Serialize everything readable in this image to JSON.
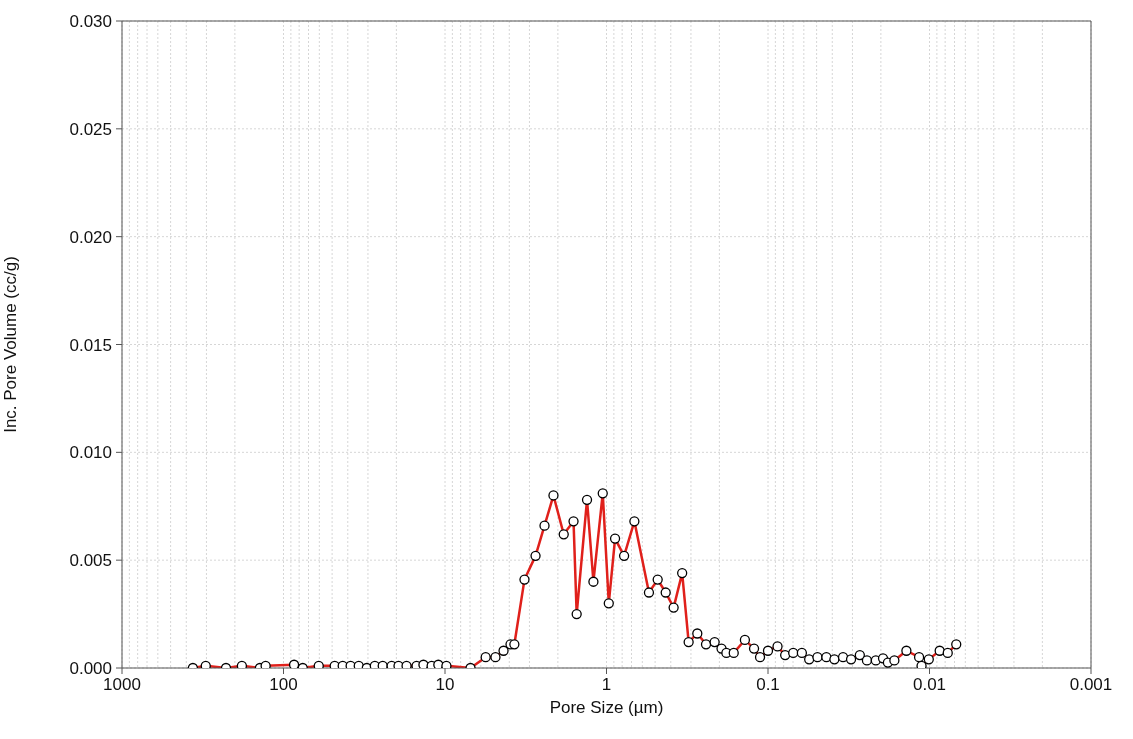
{
  "chart_data": {
    "type": "line",
    "xlabel": "Pore Size (µm)",
    "ylabel": "Inc. Pore Volume (cc/g)",
    "log": "x",
    "xlim": [
      1000,
      0.001
    ],
    "xticks": [
      1000,
      {
        "value": 900,
        "label": null
      },
      {
        "value": 800,
        "label": null
      },
      {
        "value": 700,
        "label": null
      },
      {
        "value": 600,
        "label": null
      },
      {
        "value": 500,
        "label": null
      },
      {
        "value": 400,
        "label": null
      },
      {
        "value": 300,
        "label": null
      },
      {
        "value": 200,
        "label": null
      },
      100,
      {
        "value": 90,
        "label": null
      },
      {
        "value": 80,
        "label": null
      },
      {
        "value": 70,
        "label": null
      },
      {
        "value": 60,
        "label": null
      },
      {
        "value": 50,
        "label": null
      },
      {
        "value": 40,
        "label": null
      },
      {
        "value": 30,
        "label": null
      },
      {
        "value": 20,
        "label": null
      },
      10,
      {
        "value": 9,
        "label": null
      },
      {
        "value": 8,
        "label": null
      },
      {
        "value": 7,
        "label": null
      },
      {
        "value": 6,
        "label": null
      },
      {
        "value": 5,
        "label": null
      },
      {
        "value": 4,
        "label": null
      },
      {
        "value": 3,
        "label": null
      },
      {
        "value": 2,
        "label": null
      },
      1,
      {
        "value": 0.9,
        "label": null
      },
      {
        "value": 0.8,
        "label": null
      },
      {
        "value": 0.7,
        "label": null
      },
      {
        "value": 0.6,
        "label": null
      },
      {
        "value": 0.5,
        "label": null
      },
      {
        "value": 0.4,
        "label": null
      },
      {
        "value": 0.3,
        "label": null
      },
      {
        "value": 0.2,
        "label": null
      },
      0.1,
      {
        "value": 0.09,
        "label": null
      },
      {
        "value": 0.08,
        "label": null
      },
      {
        "value": 0.07,
        "label": null
      },
      {
        "value": 0.06,
        "label": null
      },
      {
        "value": 0.05,
        "label": null
      },
      {
        "value": 0.04,
        "label": null
      },
      {
        "value": 0.03,
        "label": null
      },
      {
        "value": 0.02,
        "label": null
      },
      0.01,
      {
        "value": 0.009,
        "label": null
      },
      {
        "value": 0.008,
        "label": null
      },
      {
        "value": 0.007,
        "label": null
      },
      {
        "value": 0.006,
        "label": null
      },
      {
        "value": 0.005,
        "label": null
      },
      {
        "value": 0.004,
        "label": null
      },
      {
        "value": 0.003,
        "label": null
      },
      {
        "value": 0.002,
        "label": null
      },
      0.001
    ],
    "ylim": [
      0,
      0.03
    ],
    "yticks": [
      {
        "value": 0,
        "label": "0.000"
      },
      {
        "value": 0.005,
        "label": "0.005"
      },
      {
        "value": 0.01,
        "label": "0.010"
      },
      {
        "value": 0.015,
        "label": "0.015"
      },
      {
        "value": 0.02,
        "label": "0.020"
      },
      {
        "value": 0.025,
        "label": "0.025"
      },
      {
        "value": 0.03,
        "label": "0.030"
      }
    ],
    "grid": true,
    "marker": "circle",
    "line_style": "solid",
    "series": [
      {
        "color": "#e0201b",
        "x": [
          364,
          303,
          227,
          181,
          140,
          129,
          86,
          76,
          60.5,
          48.2,
          43,
          38.4,
          34.2,
          30.5,
          27.2,
          24.3,
          21.4,
          19.4,
          17.3,
          15.0,
          13.6,
          12.1,
          11.0,
          9.8,
          6.95,
          5.6,
          4.87,
          4.34,
          3.93,
          3.72,
          3.22,
          2.75,
          2.42,
          2.13,
          1.84,
          1.6,
          1.53,
          1.32,
          1.205,
          1.055,
          0.968,
          0.885,
          0.778,
          0.672,
          0.546,
          0.482,
          0.43,
          0.384,
          0.34,
          0.31,
          0.274,
          0.242,
          0.214,
          0.194,
          0.181,
          0.163,
          0.139,
          0.122,
          0.112,
          0.1,
          0.0873,
          0.0783,
          0.0698,
          0.0617,
          0.0556,
          0.0494,
          0.0435,
          0.0388,
          0.0343,
          0.0306,
          0.027,
          0.0244,
          0.0215,
          0.0194,
          0.0181,
          0.0165,
          0.0139,
          0.0116,
          0.0112,
          0.0101,
          0.00865,
          0.00771,
          0.00683
        ],
        "values": [
          0,
          0.0001,
          0,
          0.0001,
          0,
          0.0001,
          0.00015,
          0,
          0.0001,
          0.0001,
          0.0001,
          0.0001,
          0.0001,
          0,
          0.0001,
          0.0001,
          0.0001,
          0.0001,
          0.0001,
          0.0001,
          0.00015,
          0.0001,
          0.00015,
          0.0001,
          0,
          0.0005,
          0.0005,
          0.0008,
          0.0011,
          0.0011,
          0.0041,
          0.0052,
          0.0066,
          0.008,
          0.0062,
          0.0068,
          0.0025,
          0.0078,
          0.004,
          0.0081,
          0.003,
          0.006,
          0.0052,
          0.0068,
          0.0035,
          0.0041,
          0.0035,
          0.0028,
          0.0044,
          0.0012,
          0.0016,
          0.0011,
          0.0012,
          0.0009,
          0.0007,
          0.0007,
          0.0013,
          0.0009,
          0.0005,
          0.0008,
          0.001,
          0.0006,
          0.0007,
          0.0007,
          0.0004,
          0.0005,
          0.0005,
          0.0004,
          0.0005,
          0.0004,
          0.0006,
          0.00035,
          0.00035,
          0.00045,
          0.00025,
          0.00035,
          0.0008,
          0.0005,
          0.0001,
          0.0004,
          0.0008,
          0.0007,
          0.0011
        ]
      }
    ]
  }
}
